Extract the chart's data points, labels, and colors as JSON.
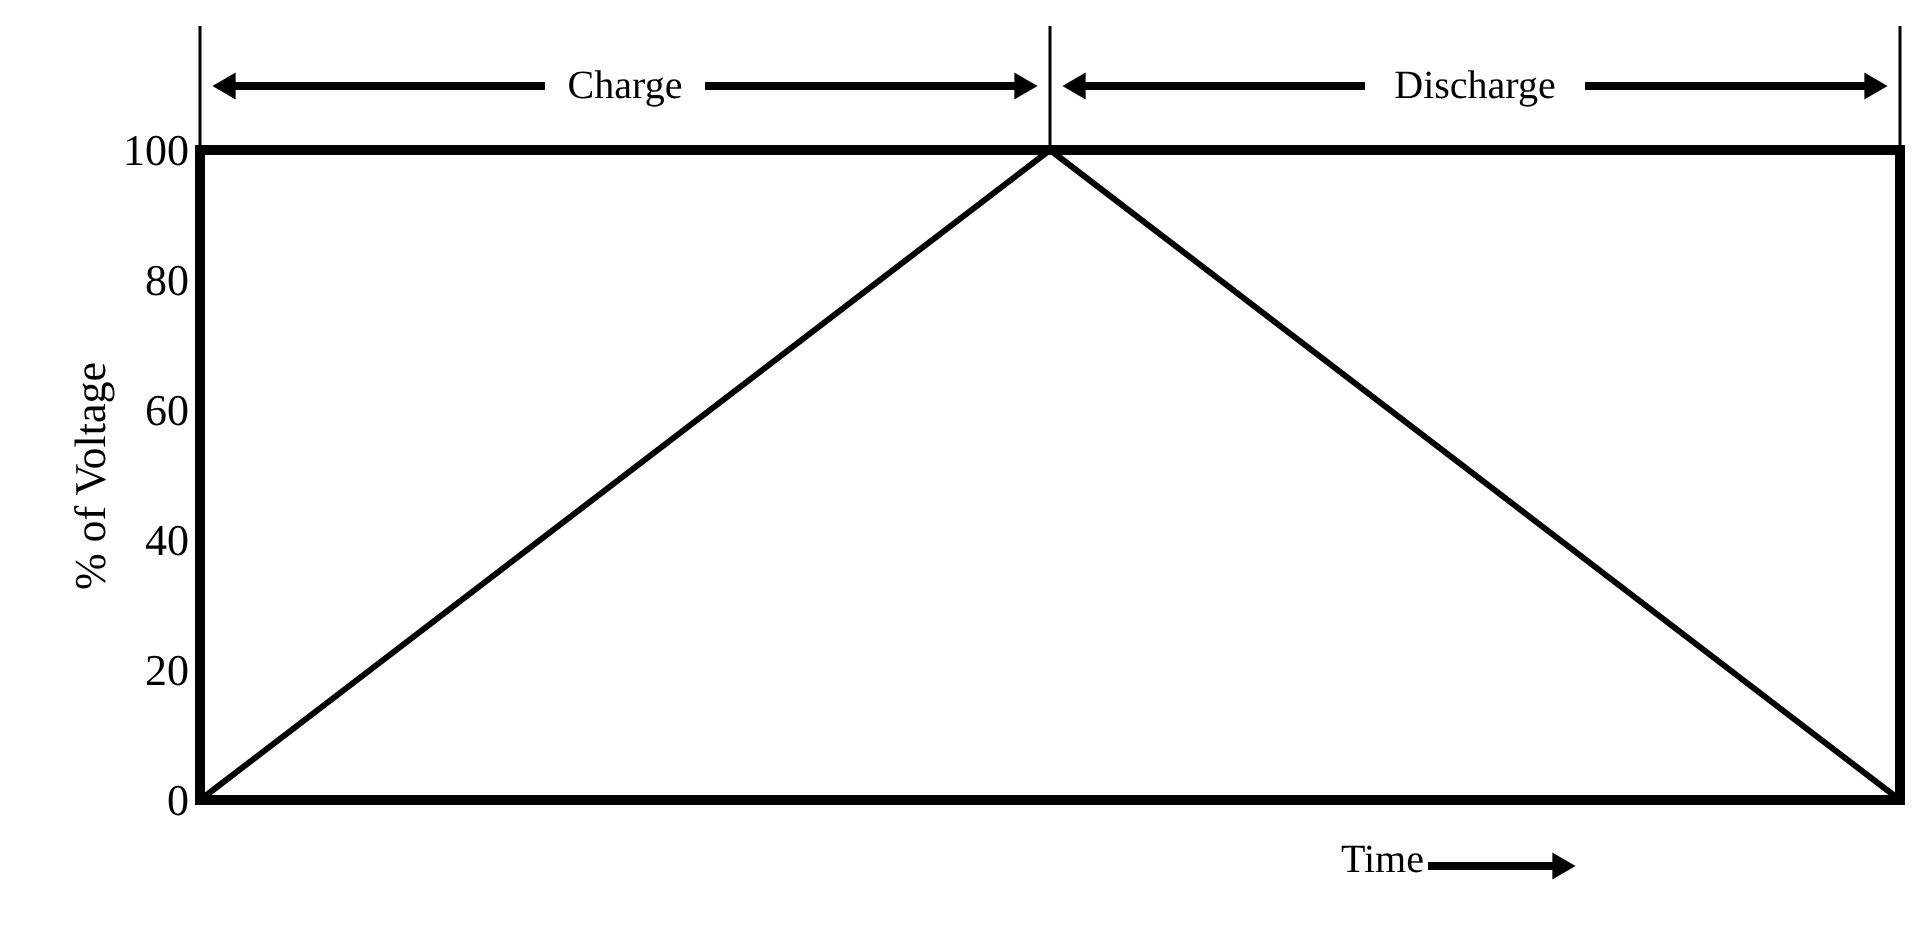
{
  "chart_data": {
    "type": "line",
    "ylabel": "% of Voltage",
    "xlabel": "Time",
    "categories": [
      null,
      null,
      null
    ],
    "series": [
      {
        "color": "#000000",
        "values": [
          0,
          100,
          0
        ]
      }
    ],
    "ylim": [
      0,
      100
    ],
    "yticks": [
      0,
      20,
      40,
      60,
      80,
      100
    ],
    "grid": false,
    "marker": "none",
    "line_style": "solid",
    "annotations": [
      "Charge",
      "Discharge"
    ]
  }
}
